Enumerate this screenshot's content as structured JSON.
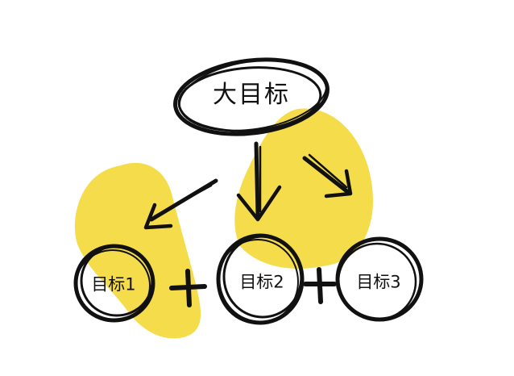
{
  "diagram": {
    "main_goal": "大目标",
    "sub_goals": [
      "目标1",
      "目标2",
      "目标3"
    ],
    "operators": [
      "+",
      "+"
    ]
  },
  "colors": {
    "ink": "#111111",
    "highlight": "#f5dc4a",
    "background": "#ffffff"
  }
}
